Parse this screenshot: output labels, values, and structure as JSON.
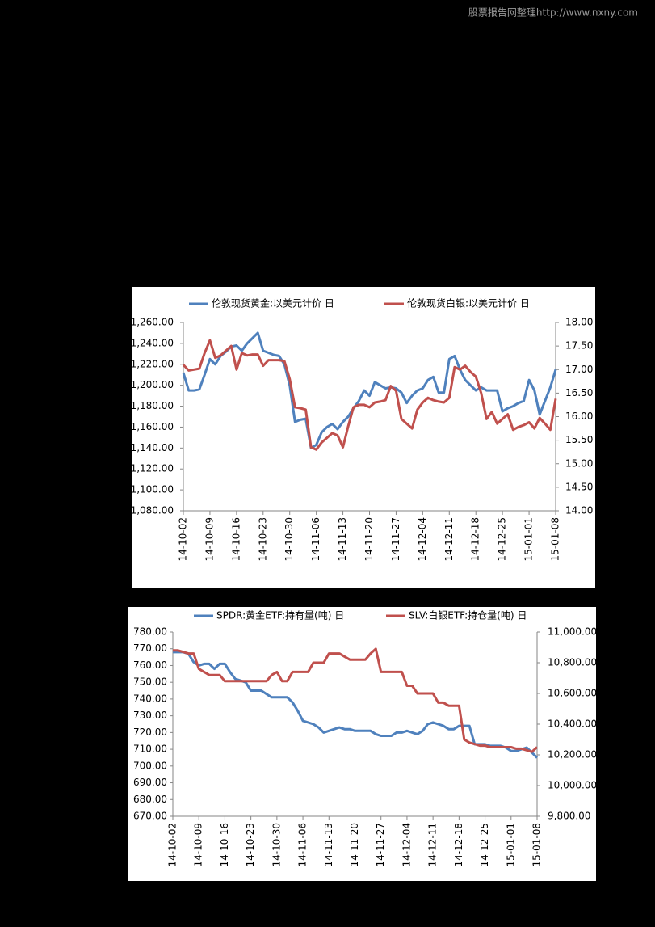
{
  "header": {
    "watermark": "股票报告网整理http://www.nxny.com"
  },
  "chart_data": [
    {
      "type": "line",
      "legend": "top",
      "categories": [
        "14-10-02",
        null,
        null,
        null,
        null,
        "14-10-09",
        null,
        null,
        null,
        null,
        "14-10-16",
        null,
        null,
        null,
        null,
        "14-10-23",
        null,
        null,
        null,
        null,
        "14-10-30",
        null,
        null,
        null,
        null,
        "14-11-06",
        null,
        null,
        null,
        null,
        "14-11-13",
        null,
        null,
        null,
        null,
        "14-11-20",
        null,
        null,
        null,
        null,
        "14-11-27",
        null,
        null,
        null,
        null,
        "14-12-04",
        null,
        null,
        null,
        null,
        "14-12-11",
        null,
        null,
        null,
        null,
        "14-12-18",
        null,
        null,
        null,
        null,
        "14-12-25",
        null,
        null,
        null,
        null,
        "15-01-01",
        null,
        null,
        null,
        null,
        "15-01-08"
      ],
      "series": [
        {
          "name": "伦敦现货黄金:以美元计价 日",
          "color": "#4f81bd",
          "values": [
            1212,
            1195,
            1195,
            1196,
            1210,
            1225,
            1220,
            1228,
            1232,
            1237,
            1238,
            1233,
            1240,
            1245,
            1250,
            1233,
            1231,
            1229,
            1228,
            1220,
            1200,
            1165,
            1167,
            1168,
            1140,
            1143,
            1155,
            1160,
            1163,
            1158,
            1165,
            1170,
            1178,
            1185,
            1195,
            1190,
            1203,
            1200,
            1197,
            1198,
            1197,
            1193,
            1183,
            1190,
            1195,
            1197,
            1205,
            1208,
            1193,
            1193,
            1225,
            1228,
            1215,
            1205,
            1200,
            1195,
            1198,
            1195,
            1195,
            1195,
            1175,
            1178,
            1180,
            1183,
            1185,
            1205,
            1195,
            1172,
            1185,
            1198,
            1215
          ]
        },
        {
          "name": "伦敦现货白银:以美元计价 日",
          "color": "#c0504d",
          "axis": "y2",
          "values": [
            17.1,
            16.98,
            17.0,
            17.02,
            17.35,
            17.62,
            17.25,
            17.3,
            17.4,
            17.5,
            17.0,
            17.35,
            17.3,
            17.32,
            17.32,
            17.08,
            17.2,
            17.2,
            17.2,
            17.18,
            16.8,
            16.2,
            16.18,
            16.15,
            15.35,
            15.3,
            15.45,
            15.55,
            15.65,
            15.6,
            15.35,
            15.8,
            16.2,
            16.25,
            16.25,
            16.2,
            16.3,
            16.32,
            16.35,
            16.65,
            16.55,
            15.95,
            15.85,
            15.75,
            16.15,
            16.3,
            16.4,
            16.35,
            16.32,
            16.3,
            16.4,
            17.05,
            17.0,
            17.08,
            16.95,
            16.85,
            16.5,
            15.95,
            16.1,
            15.85,
            15.95,
            16.05,
            15.72,
            15.78,
            15.82,
            15.88,
            15.75,
            15.97,
            15.85,
            15.72,
            16.38
          ]
        }
      ],
      "ylim": [
        1080,
        1260
      ],
      "yticks": [
        {
          "value": 1080,
          "label": "1,080.00"
        },
        {
          "value": 1100,
          "label": "1,100.00"
        },
        {
          "value": 1120,
          "label": "1,120.00"
        },
        {
          "value": 1140,
          "label": "1,140.00"
        },
        {
          "value": 1160,
          "label": "1,160.00"
        },
        {
          "value": 1180,
          "label": "1,180.00"
        },
        {
          "value": 1200,
          "label": "1,200.00"
        },
        {
          "value": 1220,
          "label": "1,220.00"
        },
        {
          "value": 1240,
          "label": "1,240.00"
        },
        {
          "value": 1260,
          "label": "1,260.00"
        }
      ],
      "y2lim": [
        14,
        18
      ],
      "y2ticks": [
        {
          "value": 14,
          "label": "14.00"
        },
        {
          "value": 14.5,
          "label": "14.50"
        },
        {
          "value": 15,
          "label": "15.00"
        },
        {
          "value": 15.5,
          "label": "15.50"
        },
        {
          "value": 16,
          "label": "16.00"
        },
        {
          "value": 16.5,
          "label": "16.50"
        },
        {
          "value": 17,
          "label": "17.00"
        },
        {
          "value": 17.5,
          "label": "17.50"
        },
        {
          "value": 18,
          "label": "18.00"
        }
      ]
    },
    {
      "type": "line",
      "legend": "top",
      "categories": [
        "14-10-02",
        null,
        null,
        null,
        null,
        "14-10-09",
        null,
        null,
        null,
        null,
        "14-10-16",
        null,
        null,
        null,
        null,
        "14-10-23",
        null,
        null,
        null,
        null,
        "14-10-30",
        null,
        null,
        null,
        null,
        "14-11-06",
        null,
        null,
        null,
        null,
        "14-11-13",
        null,
        null,
        null,
        null,
        "14-11-20",
        null,
        null,
        null,
        null,
        "14-11-27",
        null,
        null,
        null,
        null,
        "14-12-04",
        null,
        null,
        null,
        null,
        "14-12-11",
        null,
        null,
        null,
        null,
        "14-12-18",
        null,
        null,
        null,
        null,
        "14-12-25",
        null,
        null,
        null,
        null,
        "15-01-01",
        null,
        null,
        null,
        null,
        "15-01-08"
      ],
      "series": [
        {
          "name": "SPDR:黄金ETF:持有量(吨) 日",
          "color": "#4f81bd",
          "values": [
            768,
            768,
            768,
            767,
            762,
            760,
            761,
            761,
            758,
            761,
            761,
            756,
            752,
            751,
            750,
            745,
            745,
            745,
            743,
            741,
            741,
            741,
            741,
            738,
            733,
            727,
            726,
            725,
            723,
            720,
            721,
            722,
            723,
            722,
            722,
            721,
            721,
            721,
            721,
            719,
            718,
            718,
            718,
            720,
            720,
            721,
            720,
            719,
            721,
            725,
            726,
            725,
            724,
            722,
            722,
            724,
            724,
            724,
            713,
            713,
            713,
            712,
            712,
            712,
            711,
            709,
            709,
            710,
            711,
            708,
            705
          ]
        },
        {
          "name": "SLV:白银ETF:持仓量(吨) 日",
          "color": "#c0504d",
          "axis": "y2",
          "values": [
            10880,
            10880,
            10870,
            10860,
            10860,
            10760,
            10740,
            10720,
            10720,
            10720,
            10680,
            10680,
            10680,
            10680,
            10680,
            10680,
            10680,
            10680,
            10680,
            10720,
            10740,
            10680,
            10680,
            10740,
            10740,
            10740,
            10740,
            10800,
            10800,
            10800,
            10860,
            10860,
            10860,
            10840,
            10820,
            10820,
            10820,
            10820,
            10860,
            10890,
            10740,
            10740,
            10740,
            10740,
            10740,
            10650,
            10650,
            10600,
            10600,
            10600,
            10600,
            10540,
            10540,
            10520,
            10520,
            10520,
            10300,
            10280,
            10270,
            10260,
            10260,
            10250,
            10250,
            10250,
            10250,
            10250,
            10240,
            10240,
            10230,
            10220,
            10250
          ]
        }
      ],
      "ylim": [
        670,
        780
      ],
      "yticks": [
        {
          "value": 670,
          "label": "670.00"
        },
        {
          "value": 680,
          "label": "680.00"
        },
        {
          "value": 690,
          "label": "690.00"
        },
        {
          "value": 700,
          "label": "700.00"
        },
        {
          "value": 710,
          "label": "710.00"
        },
        {
          "value": 720,
          "label": "720.00"
        },
        {
          "value": 730,
          "label": "730.00"
        },
        {
          "value": 740,
          "label": "740.00"
        },
        {
          "value": 750,
          "label": "750.00"
        },
        {
          "value": 760,
          "label": "760.00"
        },
        {
          "value": 770,
          "label": "770.00"
        },
        {
          "value": 780,
          "label": "780.00"
        }
      ],
      "y2lim": [
        9800,
        11000
      ],
      "y2ticks": [
        {
          "value": 9800,
          "label": "9,800.00"
        },
        {
          "value": 10000,
          "label": "10,000.00"
        },
        {
          "value": 10200,
          "label": "10,200.00"
        },
        {
          "value": 10400,
          "label": "10,400.00"
        },
        {
          "value": 10600,
          "label": "10,600.00"
        },
        {
          "value": 10800,
          "label": "10,800.00"
        },
        {
          "value": 11000,
          "label": "11,000.00"
        }
      ]
    }
  ]
}
